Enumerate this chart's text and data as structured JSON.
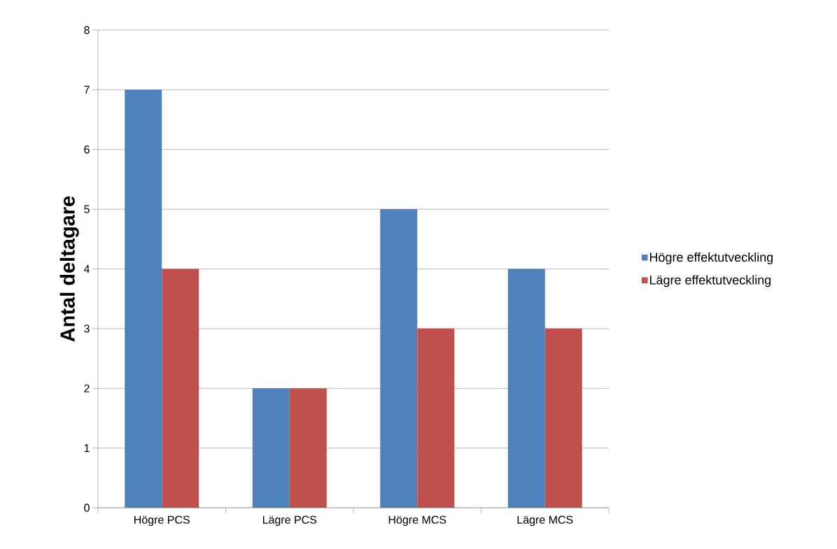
{
  "chart_data": {
    "type": "bar",
    "ylabel": "Antal deltagare",
    "categories": [
      "Högre PCS",
      "Lägre PCS",
      "Högre MCS",
      "Lägre MCS"
    ],
    "series": [
      {
        "name": "Högre effektutveckling",
        "color": "#4f81bd",
        "values": [
          7,
          2,
          5,
          4
        ]
      },
      {
        "name": "Lägre effektutveckling",
        "color": "#c0504d",
        "values": [
          4,
          2,
          3,
          3
        ]
      }
    ],
    "ylim": [
      0,
      8
    ],
    "yticks": [
      0,
      1,
      2,
      3,
      4,
      5,
      6,
      7,
      8
    ],
    "grid": "y",
    "legend": "right"
  }
}
